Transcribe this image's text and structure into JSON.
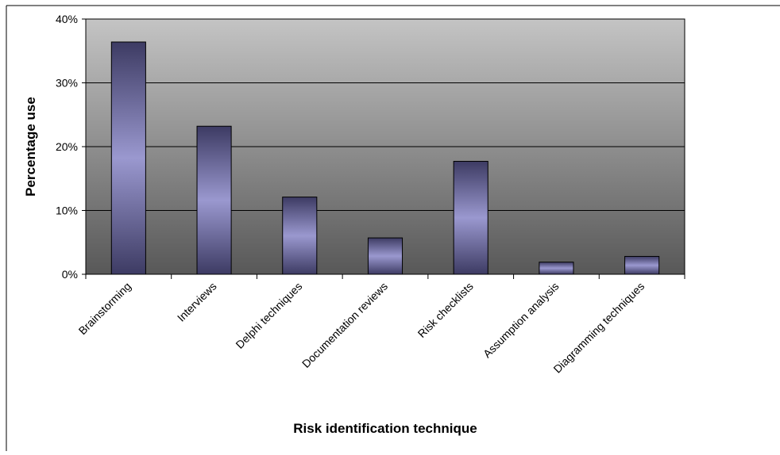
{
  "chart_data": {
    "type": "bar",
    "title": "",
    "xlabel": "Risk identification technique",
    "ylabel": "Percentage use",
    "categories": [
      "Brainstorming",
      "Interviews",
      "Delphi techniques",
      "Documentation reviews",
      "Risk checklists",
      "Assumption analysis",
      "Diagramming techniques"
    ],
    "values": [
      36.4,
      23.2,
      12.1,
      5.7,
      17.7,
      1.9,
      2.8
    ],
    "ylim": [
      0,
      40
    ],
    "yticks": [
      0,
      10,
      20,
      30,
      40
    ],
    "ytick_labels": [
      "0%",
      "10%",
      "20%",
      "30%",
      "40%"
    ],
    "grid": "horizontal",
    "legend": "none",
    "colors": {
      "plot_bg_top": "#c4c4c4",
      "plot_bg_bottom": "#585858",
      "bar_edge": "#3d3b63",
      "bar_center": "#9a98cf",
      "frame": "#000000"
    }
  }
}
